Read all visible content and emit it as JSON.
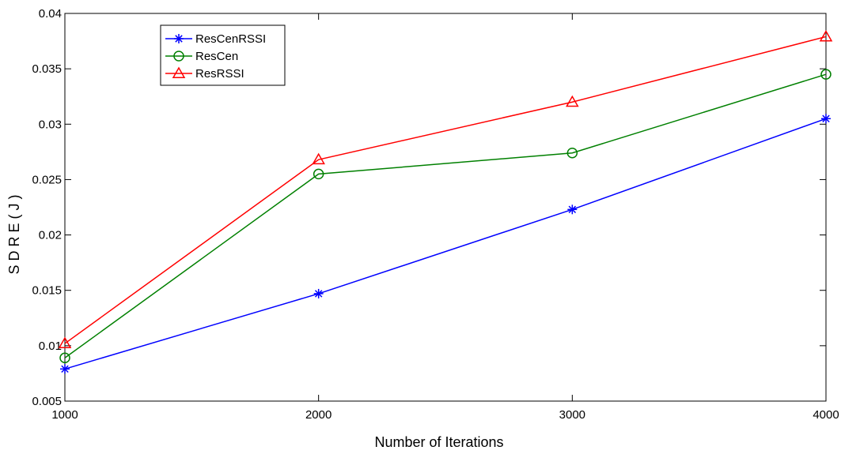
{
  "chart_data": {
    "type": "line",
    "title": "",
    "xlabel": "Number of Iterations",
    "ylabel": "S D R E  ( J )",
    "x": [
      1000,
      2000,
      3000,
      4000
    ],
    "xlim": [
      1000,
      4000
    ],
    "ylim": [
      0.005,
      0.04
    ],
    "xticks": [
      1000,
      2000,
      3000,
      4000
    ],
    "xtick_labels": [
      "1000",
      "2000",
      "3000",
      "4000"
    ],
    "yticks": [
      0.005,
      0.01,
      0.015,
      0.02,
      0.025,
      0.03,
      0.035,
      0.04
    ],
    "ytick_labels": [
      "0.005",
      "0.01",
      "0.015",
      "0.02",
      "0.025",
      "0.03",
      "0.035",
      "0.04"
    ],
    "grid": false,
    "legend_position": "top-left",
    "series": [
      {
        "name": "ResCenRSSI",
        "color": "#0000ff",
        "marker": "asterisk",
        "values": [
          0.0079,
          0.0147,
          0.0223,
          0.0305
        ]
      },
      {
        "name": "ResCen",
        "color": "#008000",
        "marker": "circle",
        "values": [
          0.0089,
          0.0255,
          0.0274,
          0.0345
        ]
      },
      {
        "name": "ResRSSI",
        "color": "#ff0000",
        "marker": "triangle",
        "values": [
          0.0102,
          0.0268,
          0.032,
          0.0379
        ]
      }
    ]
  }
}
